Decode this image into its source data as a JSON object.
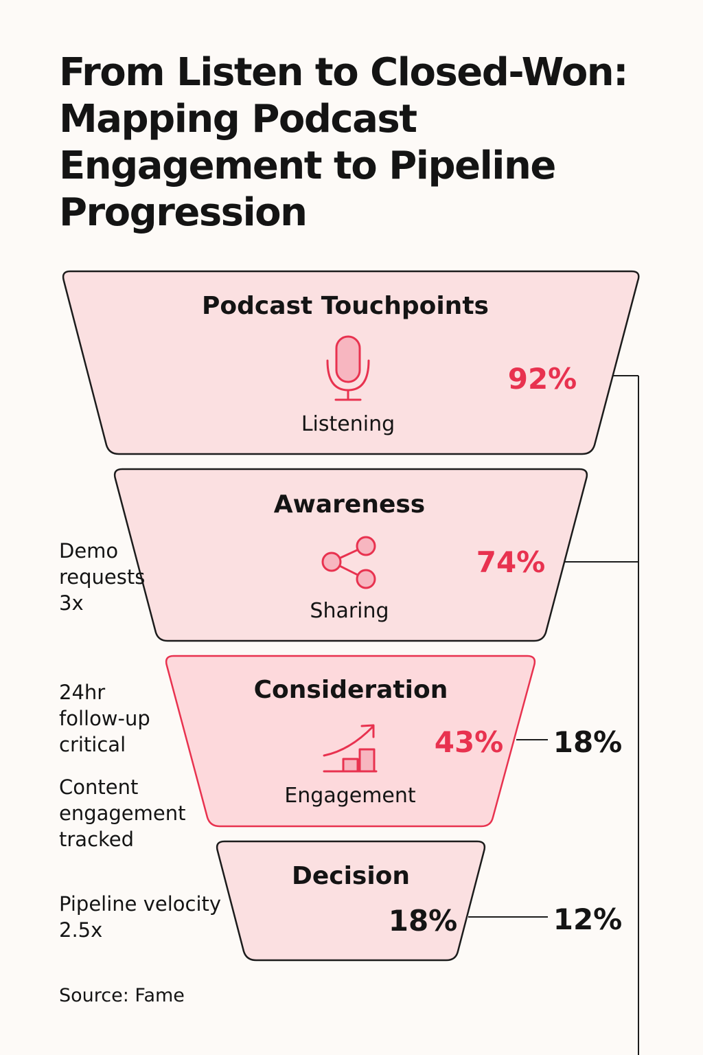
{
  "title_lines": [
    "From Listen to Closed-Won:",
    "Mapping Podcast",
    "Engagement to Pipeline",
    "Progression"
  ],
  "stages": [
    {
      "title": "Podcast Touchpoints",
      "icon": "microphone-icon",
      "label": "Listening",
      "percent": "92%",
      "highlighted": false
    },
    {
      "title": "Awareness",
      "icon": "share-icon",
      "label": "Sharing",
      "percent": "74%",
      "highlighted": false
    },
    {
      "title": "Consideration",
      "icon": "growth-chart-icon",
      "label": "Engagement",
      "percent": "43%",
      "highlighted": true
    },
    {
      "title": "Decision",
      "icon": "",
      "label": "",
      "percent": "18%",
      "highlighted": false
    }
  ],
  "connector_values": [
    "18%",
    "12%"
  ],
  "side_notes": [
    "Demo\nrequests\n3x",
    "24hr\nfollow-up\ncritical",
    "Content\nengagement\ntracked",
    "Pipeline velocity\n2.5x"
  ],
  "source": "Source: Fame",
  "colors": {
    "background": "#fdfaf7",
    "stage_fill": "#fbe0e1",
    "stage_fill_highlight": "#fdd9dc",
    "stage_stroke": "#1c1c1c",
    "stage_stroke_highlight": "#e8324f",
    "accent": "#e8324f",
    "text": "#141414"
  }
}
